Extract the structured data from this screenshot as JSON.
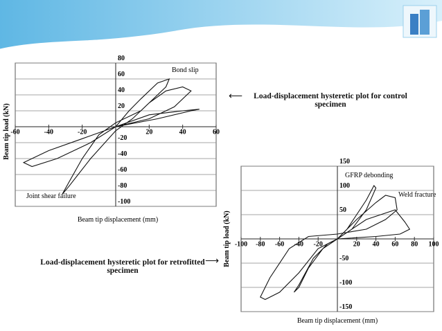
{
  "chart_data": [
    {
      "type": "line",
      "xlabel": "Beam tip displacement (mm)",
      "ylabel": "Beam tip load (kN)",
      "annotations": [
        "Bond slip",
        "Joint shear failure"
      ],
      "xlim": [
        -60,
        60
      ],
      "ylim": [
        -100,
        80
      ],
      "xticks": [
        -60,
        -40,
        -20,
        20,
        40,
        60
      ],
      "yticks": [
        80,
        60,
        40,
        20,
        -20,
        -40,
        -60,
        -80,
        -100
      ],
      "grid": true,
      "x": [
        0,
        8,
        15,
        25,
        32,
        30,
        15,
        0,
        -10,
        -20,
        -28,
        -32,
        -28,
        -15,
        0,
        10,
        20,
        30,
        40,
        45,
        35,
        20,
        0,
        -20,
        -40,
        -55,
        -50,
        -35,
        -15,
        0,
        20,
        40,
        50,
        45,
        25,
        0
      ],
      "series": [
        {
          "color": "#111111",
          "values": [
            0,
            20,
            35,
            55,
            60,
            50,
            20,
            5,
            -10,
            -40,
            -70,
            -85,
            -75,
            -40,
            -5,
            10,
            30,
            45,
            50,
            45,
            25,
            10,
            0,
            -15,
            -30,
            -45,
            -50,
            -40,
            -20,
            0,
            15,
            20,
            22,
            20,
            10,
            0
          ]
        }
      ]
    },
    {
      "type": "line",
      "xlabel": "Beam tip displacement (mm)",
      "ylabel": "Beam tip load (kN)",
      "annotations": [
        "GFRP debonding",
        "Weld fracture"
      ],
      "xlim": [
        -100,
        100
      ],
      "ylim": [
        -150,
        150
      ],
      "xticks": [
        -100,
        -80,
        -60,
        -40,
        -20,
        20,
        40,
        60,
        80,
        100
      ],
      "yticks": [
        150,
        100,
        50,
        -50,
        -100,
        -150
      ],
      "grid": true,
      "x": [
        0,
        10,
        20,
        30,
        38,
        40,
        30,
        15,
        0,
        -15,
        -30,
        -40,
        -45,
        -40,
        -25,
        -10,
        0,
        20,
        40,
        50,
        60,
        62,
        50,
        30,
        0,
        -30,
        -50,
        -70,
        -80,
        -75,
        -60,
        -40,
        -20,
        0,
        30,
        60,
        70,
        75,
        65,
        40,
        0
      ],
      "series": [
        {
          "color": "#111111",
          "values": [
            0,
            20,
            50,
            80,
            110,
            105,
            60,
            20,
            0,
            -20,
            -60,
            -100,
            -110,
            -95,
            -40,
            -10,
            0,
            40,
            75,
            90,
            85,
            60,
            40,
            20,
            10,
            5,
            -20,
            -80,
            -120,
            -125,
            -110,
            -70,
            -20,
            0,
            40,
            60,
            35,
            20,
            10,
            5,
            0
          ]
        }
      ]
    }
  ],
  "captions": [
    "Load-displacement hysteretic plot for control specimen",
    "Load-displacement hysteretic plot for retrofitted specimen"
  ]
}
